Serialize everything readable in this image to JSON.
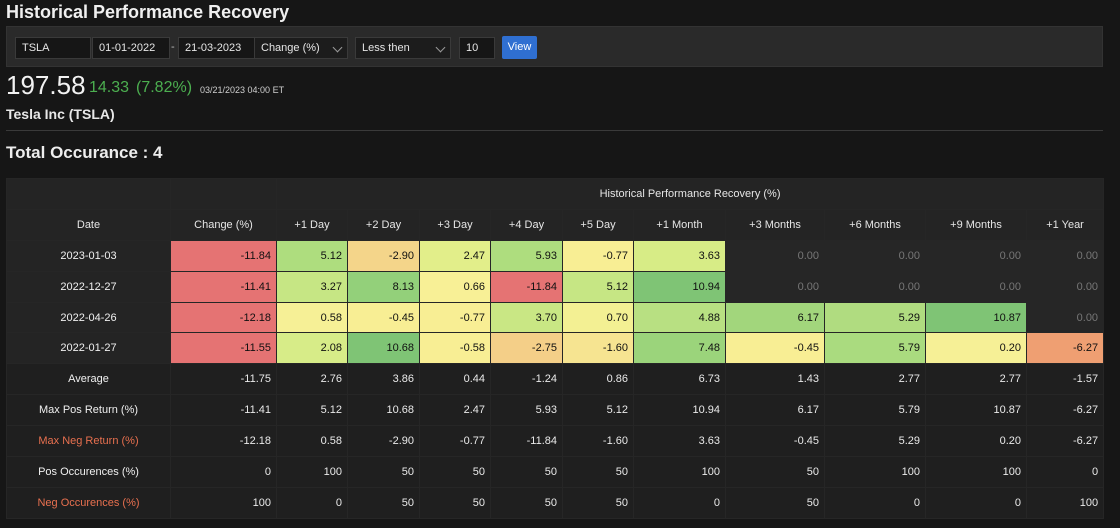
{
  "page": {
    "title": "Historical Performance Recovery"
  },
  "filters": {
    "ticker": "TSLA",
    "start_date": "01-01-2022",
    "separator": "-",
    "end_date": "21-03-2023",
    "metric": "Change (%)",
    "comparator": "Less then",
    "threshold": "10",
    "view_label": "View"
  },
  "quote": {
    "price": "197.58",
    "change": "14.33",
    "change_pct": "(7.82%)",
    "timestamp": "03/21/2023 04:00 ET",
    "company": "Tesla Inc (TSLA)"
  },
  "total_label": "Total Occurance : 4",
  "table": {
    "group_header": "Historical Performance Recovery (%)",
    "columns": [
      "Date",
      "Change (%)",
      "+1 Day",
      "+2 Day",
      "+3 Day",
      "+4 Day",
      "+5 Day",
      "+1 Month",
      "+3 Months",
      "+6 Months",
      "+9 Months",
      "+1 Year"
    ],
    "rows": [
      {
        "date": "2023-01-03",
        "values": [
          "-11.84",
          "5.12",
          "-2.90",
          "2.47",
          "5.93",
          "-0.77",
          "3.63",
          "0.00",
          "0.00",
          "0.00",
          "0.00"
        ],
        "colors": [
          "#e57373",
          "#aedd7e",
          "#f4d58a",
          "#e2ee8a",
          "#aedd7e",
          "#f8ee94",
          "#d7ec86",
          "",
          "",
          "",
          ""
        ]
      },
      {
        "date": "2022-12-27",
        "values": [
          "-11.41",
          "3.27",
          "8.13",
          "0.66",
          "-11.84",
          "5.12",
          "10.94",
          "0.00",
          "0.00",
          "0.00",
          "0.00"
        ],
        "colors": [
          "#e57373",
          "#c6e684",
          "#93d07a",
          "#f8f096",
          "#e57373",
          "#c6e684",
          "#7fc475",
          "",
          "",
          "",
          ""
        ]
      },
      {
        "date": "2022-04-26",
        "values": [
          "-12.18",
          "0.58",
          "-0.45",
          "-0.77",
          "3.70",
          "0.70",
          "4.88",
          "6.17",
          "5.29",
          "10.87",
          "0.00"
        ],
        "colors": [
          "#e57373",
          "#f6f096",
          "#f8ee94",
          "#f8ee94",
          "#c9e784",
          "#f3f093",
          "#b8e082",
          "#a2d67c",
          "#b0dc80",
          "#7fc475",
          ""
        ]
      },
      {
        "date": "2022-01-27",
        "values": [
          "-11.55",
          "2.08",
          "10.68",
          "-0.58",
          "-2.75",
          "-1.60",
          "7.48",
          "-0.45",
          "5.79",
          "0.20",
          "-6.27"
        ],
        "colors": [
          "#e57373",
          "#d7ec88",
          "#7fc475",
          "#f8ee94",
          "#f4cf88",
          "#f6e491",
          "#9bd47b",
          "#f8ee94",
          "#aadb7f",
          "#f6f096",
          "#ef9f72"
        ]
      }
    ],
    "stats": [
      {
        "label": "Average",
        "neg": false,
        "values": [
          "-11.75",
          "2.76",
          "3.86",
          "0.44",
          "-1.24",
          "0.86",
          "6.73",
          "1.43",
          "2.77",
          "2.77",
          "-1.57"
        ]
      },
      {
        "label": "Max Pos Return (%)",
        "neg": false,
        "values": [
          "-11.41",
          "5.12",
          "10.68",
          "2.47",
          "5.93",
          "5.12",
          "10.94",
          "6.17",
          "5.79",
          "10.87",
          "-6.27"
        ]
      },
      {
        "label": "Max Neg Return (%)",
        "neg": true,
        "values": [
          "-12.18",
          "0.58",
          "-2.90",
          "-0.77",
          "-11.84",
          "-1.60",
          "3.63",
          "-0.45",
          "5.29",
          "0.20",
          "-6.27"
        ]
      },
      {
        "label": "Pos Occurences (%)",
        "neg": false,
        "values": [
          "0",
          "100",
          "50",
          "50",
          "50",
          "50",
          "100",
          "50",
          "100",
          "100",
          "0"
        ]
      },
      {
        "label": "Neg Occurences (%)",
        "neg": true,
        "values": [
          "100",
          "0",
          "50",
          "50",
          "50",
          "50",
          "0",
          "50",
          "0",
          "0",
          "100"
        ]
      }
    ]
  }
}
